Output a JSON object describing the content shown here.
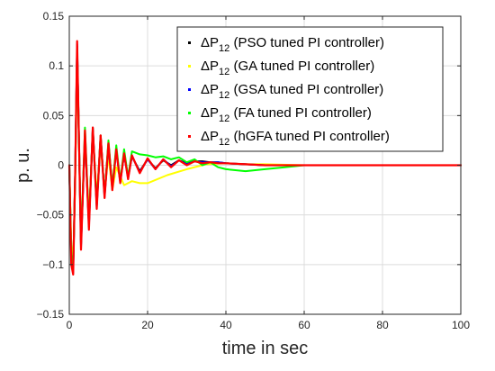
{
  "chart_data": {
    "type": "line",
    "title": "",
    "xlabel": "time in sec",
    "ylabel": "p. u.",
    "xlim": [
      0,
      100
    ],
    "ylim": [
      -0.15,
      0.15
    ],
    "xticks": [
      0,
      20,
      40,
      60,
      80,
      100
    ],
    "yticks": [
      -0.15,
      -0.1,
      -0.05,
      0,
      0.05,
      0.1,
      0.15
    ],
    "ytick_labels": [
      "−0.15",
      "−0.1",
      "−0.05",
      "0",
      "0.05",
      "0.1",
      "0.15"
    ],
    "grid": true,
    "legend": "top-right",
    "legend_symbol": "ΔP",
    "legend_subscript": "12",
    "series": [
      {
        "name": "(PSO tuned PI controller)",
        "color": "#000000",
        "x": [
          0,
          0.5,
          1,
          1.5,
          2,
          3,
          4,
          5,
          6,
          7,
          8,
          9,
          10,
          11,
          12,
          13,
          14,
          15,
          16,
          18,
          20,
          22,
          24,
          26,
          28,
          30,
          32,
          34,
          36,
          38,
          40,
          45,
          50,
          60,
          70,
          80,
          90,
          100
        ],
        "y": [
          0,
          -0.09,
          -0.105,
          -0.01,
          0.12,
          -0.08,
          0.03,
          -0.06,
          0.038,
          -0.04,
          0.03,
          -0.03,
          0.022,
          -0.022,
          0.016,
          -0.016,
          0.012,
          -0.012,
          0.009,
          -0.006,
          0.006,
          -0.003,
          0.005,
          0.0,
          0.005,
          0.002,
          0.004,
          0.004,
          0.003,
          0.003,
          0.002,
          0.001,
          0.0,
          0.0,
          0.0,
          0.0,
          0.0,
          0.0
        ]
      },
      {
        "name": "(GA tuned PI controller)",
        "color": "#ffff00",
        "x": [
          0,
          0.5,
          1,
          1.5,
          2,
          3,
          4,
          5,
          6,
          7,
          8,
          9,
          10,
          11,
          12,
          14,
          16,
          18,
          20,
          25,
          30,
          35,
          40,
          45,
          50,
          60,
          70,
          80,
          90,
          100
        ],
        "y": [
          0,
          -0.08,
          -0.1,
          -0.02,
          0.11,
          -0.07,
          0.025,
          -0.05,
          0.03,
          -0.03,
          0.02,
          -0.028,
          0.01,
          -0.025,
          -0.002,
          -0.02,
          -0.016,
          -0.018,
          -0.018,
          -0.01,
          -0.004,
          0.001,
          0.002,
          0.001,
          0.001,
          0.0,
          0.0,
          0.0,
          0.0,
          0.0
        ]
      },
      {
        "name": "(GSA tuned PI controller)",
        "color": "#0000ff",
        "x": [
          0,
          0.5,
          1,
          1.5,
          2,
          3,
          4,
          5,
          6,
          7,
          8,
          9,
          10,
          11,
          12,
          13,
          14,
          15,
          16,
          18,
          20,
          22,
          24,
          26,
          28,
          30,
          32,
          34,
          36,
          38,
          40,
          45,
          50,
          60,
          70,
          80,
          90,
          100
        ],
        "y": [
          0,
          -0.095,
          -0.108,
          -0.01,
          0.122,
          -0.082,
          0.032,
          -0.062,
          0.036,
          -0.042,
          0.028,
          -0.032,
          0.02,
          -0.024,
          0.015,
          -0.017,
          0.011,
          -0.013,
          0.009,
          -0.007,
          0.006,
          -0.004,
          0.006,
          -0.001,
          0.005,
          0.001,
          0.004,
          0.003,
          0.003,
          0.003,
          0.002,
          0.001,
          0.0,
          0.0,
          0.0,
          0.0,
          0.0,
          0.0
        ]
      },
      {
        "name": "(FA tuned PI controller)",
        "color": "#00ff00",
        "x": [
          0,
          0.5,
          1,
          1.5,
          2,
          3,
          4,
          5,
          6,
          7,
          8,
          9,
          10,
          11,
          12,
          13,
          14,
          15,
          16,
          18,
          20,
          22,
          24,
          26,
          28,
          30,
          32,
          34,
          36,
          38,
          40,
          45,
          50,
          55,
          60,
          70,
          80,
          90,
          100
        ],
        "y": [
          0,
          -0.09,
          -0.103,
          -0.01,
          0.118,
          -0.078,
          0.038,
          -0.058,
          0.036,
          -0.04,
          0.03,
          -0.03,
          0.025,
          -0.022,
          0.02,
          -0.016,
          0.016,
          -0.012,
          0.014,
          0.011,
          0.01,
          0.008,
          0.009,
          0.006,
          0.008,
          0.003,
          0.006,
          0.0,
          0.003,
          -0.002,
          -0.004,
          -0.006,
          -0.004,
          -0.002,
          0.0,
          0.0,
          0.0,
          0.0,
          0.0
        ]
      },
      {
        "name": "(hGFA tuned PI controller)",
        "color": "#ff0000",
        "x": [
          0,
          0.5,
          1,
          1.5,
          2,
          3,
          4,
          5,
          6,
          7,
          8,
          9,
          10,
          11,
          12,
          13,
          14,
          15,
          16,
          18,
          20,
          22,
          24,
          26,
          28,
          30,
          32,
          34,
          36,
          38,
          40,
          45,
          50,
          60,
          70,
          80,
          90,
          100
        ],
        "y": [
          0,
          -0.1,
          -0.11,
          -0.01,
          0.125,
          -0.085,
          0.035,
          -0.065,
          0.038,
          -0.044,
          0.03,
          -0.033,
          0.022,
          -0.025,
          0.016,
          -0.018,
          0.012,
          -0.014,
          0.01,
          -0.008,
          0.007,
          -0.004,
          0.006,
          -0.002,
          0.005,
          0.0,
          0.004,
          0.002,
          0.003,
          0.002,
          0.002,
          0.001,
          0.0,
          0.0,
          0.0,
          0.0,
          0.0,
          0.0
        ]
      }
    ]
  }
}
